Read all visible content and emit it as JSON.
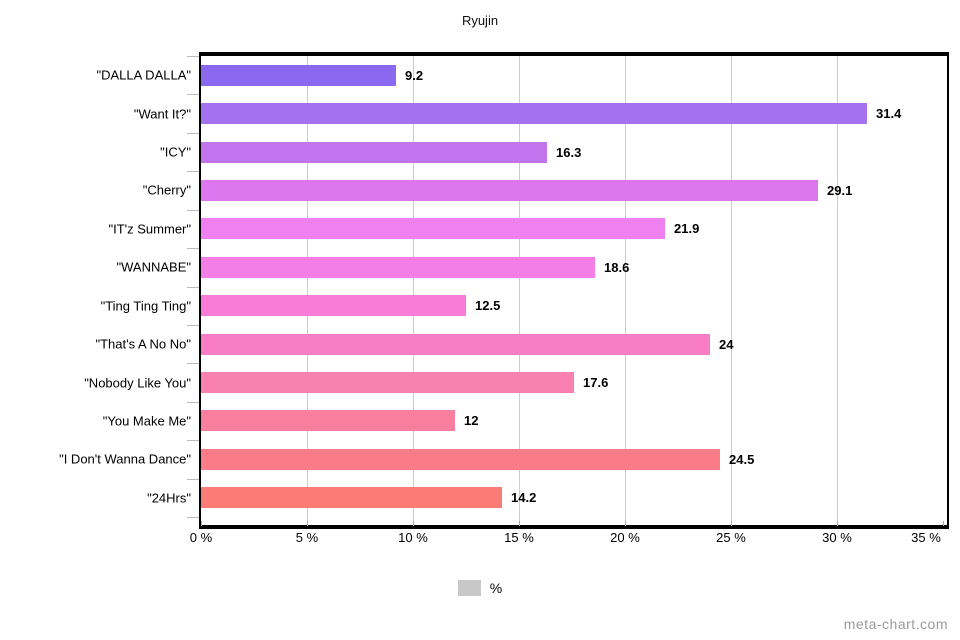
{
  "title": "Ryujin",
  "legend": {
    "label": "%",
    "swatch_color": "#c8c8c8"
  },
  "watermark": "meta-chart.com",
  "chart_data": {
    "type": "bar",
    "orientation": "horizontal",
    "title": "Ryujin",
    "categories": [
      "\"DALLA DALLA\"",
      "\"Want It?\"",
      "\"ICY\"",
      "\"Cherry\"",
      "\"IT'z Summer\"",
      "\"WANNABE\"",
      "\"Ting Ting Ting\"",
      "\"That's A No No\"",
      "\"Nobody Like You\"",
      "\"You Make Me\"",
      "\"I Don't Wanna Dance\"",
      "\"24Hrs\""
    ],
    "values": [
      9.2,
      31.4,
      16.3,
      29.1,
      21.9,
      18.6,
      12.5,
      24,
      17.6,
      12,
      24.5,
      14.2
    ],
    "value_labels": [
      "9.2",
      "31.4",
      "16.3",
      "29.1",
      "21.9",
      "18.6",
      "12.5",
      "24",
      "17.6",
      "12",
      "24.5",
      "14.2"
    ],
    "bar_colors": [
      "#8a68f0",
      "#a471f1",
      "#c274ee",
      "#db76ee",
      "#f080f0",
      "#f57de6",
      "#f97cd9",
      "#f97dc4",
      "#f981b2",
      "#fa7e9e",
      "#fb7b89",
      "#fc7b74"
    ],
    "x_tick_labels": [
      "0 %",
      "5 %",
      "10 %",
      "15 %",
      "20 %",
      "25 %",
      "30 %",
      "35 %"
    ],
    "xlim": [
      0,
      35
    ],
    "grid": true,
    "gridline_color": "#cccccc",
    "legend_position": "bottom",
    "series_name": "%"
  }
}
